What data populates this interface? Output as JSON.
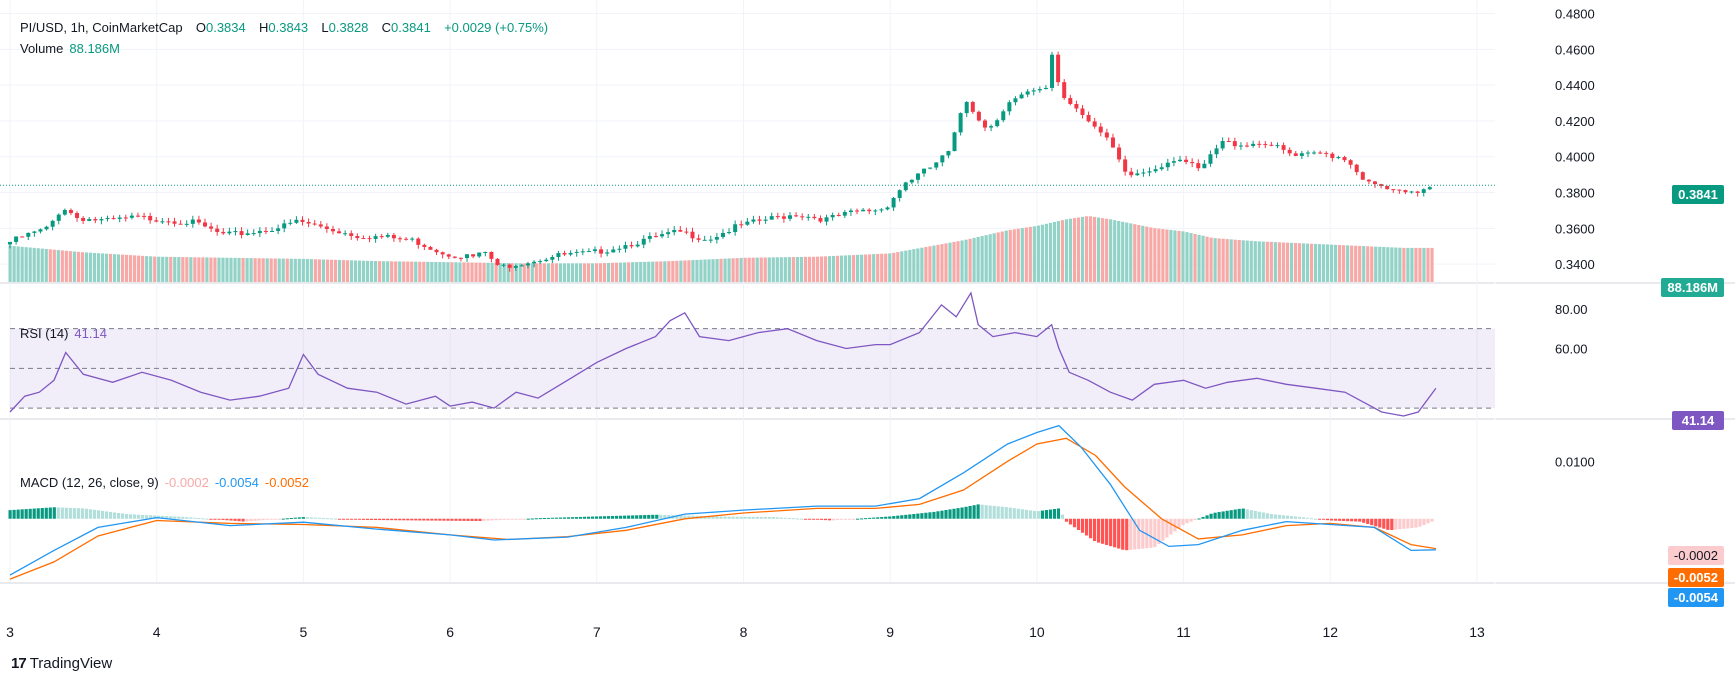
{
  "symbol": {
    "pair": "PI/USD",
    "interval": "1h",
    "source": "CoinMarketCap",
    "o_label": "O",
    "o_value": "0.3834",
    "h_label": "H",
    "h_value": "0.3843",
    "l_label": "L",
    "l_value": "0.3828",
    "c_label": "C",
    "c_value": "0.3841",
    "change": "+0.0029 (+0.75%)",
    "volume_label": "Volume",
    "volume_value": "88.186M"
  },
  "rsi": {
    "label": "RSI (14)",
    "value": "41.14"
  },
  "macd": {
    "label": "MACD (12, 26, close, 9)",
    "hist": "-0.0002",
    "macd": "-0.0054",
    "signal": "-0.0052"
  },
  "badges": {
    "price": "0.3841",
    "volume": "88.186M",
    "rsi": "41.14",
    "hist": "-0.0002",
    "signal": "-0.0052",
    "macd": "-0.0054"
  },
  "brand": {
    "logo": "17",
    "name": "TradingView"
  },
  "colors": {
    "up": "#089981",
    "down": "#f23645",
    "vol_up": "#92d2c7",
    "vol_down": "#f7a9a7",
    "rsi": "#7e57c2",
    "macd": "#2196f3",
    "signal": "#ff6d00",
    "grid": "#f0f3fa"
  },
  "chart_data": [
    {
      "type": "candlestick",
      "title": "PI/USD, 1h, CoinMarketCap",
      "x_ticks": [
        "3",
        "4",
        "5",
        "6",
        "7",
        "8",
        "9",
        "10",
        "11",
        "12",
        "13"
      ],
      "y_ticks": [
        "0.3400",
        "0.3600",
        "0.3800",
        "0.4000",
        "0.4200",
        "0.4400",
        "0.4600",
        "0.4800"
      ],
      "ylim": [
        0.33,
        0.482
      ],
      "last_price": 0.3841,
      "close_path": [
        [
          3.0,
          0.351
        ],
        [
          3.15,
          0.356
        ],
        [
          3.3,
          0.36
        ],
        [
          3.4,
          0.372
        ],
        [
          3.5,
          0.366
        ],
        [
          3.7,
          0.364
        ],
        [
          3.9,
          0.366
        ],
        [
          4.1,
          0.365
        ],
        [
          4.3,
          0.363
        ],
        [
          4.5,
          0.356
        ],
        [
          4.7,
          0.358
        ],
        [
          4.9,
          0.361
        ],
        [
          5.0,
          0.364
        ],
        [
          5.2,
          0.36
        ],
        [
          5.4,
          0.356
        ],
        [
          5.6,
          0.355
        ],
        [
          5.8,
          0.353
        ],
        [
          6.0,
          0.346
        ],
        [
          6.2,
          0.344
        ],
        [
          6.3,
          0.347
        ],
        [
          6.35,
          0.338
        ],
        [
          6.6,
          0.342
        ],
        [
          6.8,
          0.345
        ],
        [
          7.0,
          0.346
        ],
        [
          7.3,
          0.352
        ],
        [
          7.6,
          0.358
        ],
        [
          7.8,
          0.354
        ],
        [
          8.0,
          0.361
        ],
        [
          8.2,
          0.365
        ],
        [
          8.4,
          0.368
        ],
        [
          8.6,
          0.365
        ],
        [
          8.8,
          0.369
        ],
        [
          9.0,
          0.371
        ],
        [
          9.15,
          0.386
        ],
        [
          9.3,
          0.393
        ],
        [
          9.45,
          0.403
        ],
        [
          9.55,
          0.433
        ],
        [
          9.7,
          0.415
        ],
        [
          9.85,
          0.43
        ],
        [
          10.0,
          0.436
        ],
        [
          10.1,
          0.437
        ],
        [
          10.15,
          0.46
        ],
        [
          10.2,
          0.435
        ],
        [
          10.35,
          0.425
        ],
        [
          10.55,
          0.406
        ],
        [
          10.65,
          0.389
        ],
        [
          10.8,
          0.392
        ],
        [
          11.0,
          0.4
        ],
        [
          11.15,
          0.392
        ],
        [
          11.3,
          0.408
        ],
        [
          11.45,
          0.407
        ],
        [
          11.6,
          0.408
        ],
        [
          11.8,
          0.4
        ],
        [
          12.0,
          0.402
        ],
        [
          12.15,
          0.399
        ],
        [
          12.3,
          0.385
        ],
        [
          12.5,
          0.38
        ],
        [
          12.6,
          0.379
        ],
        [
          12.72,
          0.3841
        ]
      ]
    },
    {
      "type": "bar",
      "title": "Volume",
      "last_value": "88.186M",
      "note": "relative volume profile, scaled 0–1",
      "profile": [
        [
          3.0,
          0.33
        ],
        [
          3.5,
          0.27
        ],
        [
          4.0,
          0.23
        ],
        [
          4.5,
          0.22
        ],
        [
          5.0,
          0.21
        ],
        [
          5.5,
          0.19
        ],
        [
          6.0,
          0.18
        ],
        [
          6.5,
          0.17
        ],
        [
          7.0,
          0.17
        ],
        [
          7.5,
          0.19
        ],
        [
          8.0,
          0.22
        ],
        [
          8.5,
          0.23
        ],
        [
          9.0,
          0.26
        ],
        [
          9.5,
          0.38
        ],
        [
          9.8,
          0.47
        ],
        [
          10.0,
          0.51
        ],
        [
          10.2,
          0.57
        ],
        [
          10.35,
          0.6
        ],
        [
          10.5,
          0.57
        ],
        [
          10.8,
          0.49
        ],
        [
          11.0,
          0.46
        ],
        [
          11.2,
          0.4
        ],
        [
          11.5,
          0.37
        ],
        [
          12.0,
          0.34
        ],
        [
          12.5,
          0.31
        ],
        [
          12.72,
          0.31
        ]
      ]
    },
    {
      "type": "line",
      "title": "RSI (14)",
      "y_ticks": [
        "60.00",
        "80.00"
      ],
      "bands": [
        30,
        50,
        70
      ],
      "ylim": [
        25,
        92
      ],
      "last_value": 41.14,
      "x": [
        3.0,
        3.1,
        3.2,
        3.3,
        3.38,
        3.5,
        3.7,
        3.9,
        4.1,
        4.3,
        4.5,
        4.7,
        4.9,
        5.0,
        5.1,
        5.3,
        5.5,
        5.7,
        5.9,
        6.0,
        6.15,
        6.3,
        6.45,
        6.6,
        6.8,
        7.0,
        7.2,
        7.4,
        7.5,
        7.6,
        7.7,
        7.9,
        8.1,
        8.3,
        8.5,
        8.7,
        8.9,
        9.0,
        9.2,
        9.35,
        9.45,
        9.55,
        9.6,
        9.7,
        9.85,
        10.0,
        10.1,
        10.15,
        10.22,
        10.35,
        10.5,
        10.65,
        10.8,
        11.0,
        11.15,
        11.3,
        11.5,
        11.7,
        11.9,
        12.1,
        12.25,
        12.35,
        12.5,
        12.6,
        12.72
      ],
      "values": [
        28,
        36,
        38,
        44,
        58,
        47,
        43,
        48,
        44,
        38,
        34,
        36,
        40,
        57,
        47,
        40,
        38,
        32,
        36,
        31,
        33,
        30,
        38,
        35,
        44,
        53,
        60,
        66,
        74,
        78,
        66,
        64,
        68,
        70,
        64,
        60,
        62,
        62,
        68,
        82,
        76,
        88,
        72,
        66,
        68,
        66,
        72,
        60,
        48,
        44,
        38,
        34,
        42,
        44,
        40,
        43,
        45,
        42,
        40,
        38,
        32,
        28,
        26,
        28,
        40
      ]
    },
    {
      "type": "line",
      "title": "MACD (12, 26, close, 9)",
      "y_ticks": [
        "0.0100"
      ],
      "ylim": [
        -0.011,
        0.017
      ],
      "macd": {
        "name": "MACD",
        "last_value": -0.0054,
        "points": [
          [
            3.0,
            -0.0098
          ],
          [
            3.3,
            -0.0055
          ],
          [
            3.6,
            -0.0015
          ],
          [
            4.0,
            0.0002
          ],
          [
            4.5,
            -0.0012
          ],
          [
            5.0,
            -0.0006
          ],
          [
            5.5,
            -0.0018
          ],
          [
            6.0,
            -0.0028
          ],
          [
            6.3,
            -0.0037
          ],
          [
            6.8,
            -0.0032
          ],
          [
            7.2,
            -0.0015
          ],
          [
            7.6,
            0.0008
          ],
          [
            8.0,
            0.0015
          ],
          [
            8.5,
            0.0022
          ],
          [
            8.9,
            0.0022
          ],
          [
            9.2,
            0.0035
          ],
          [
            9.5,
            0.008
          ],
          [
            9.8,
            0.013
          ],
          [
            10.0,
            0.015
          ],
          [
            10.15,
            0.0162
          ],
          [
            10.3,
            0.0125
          ],
          [
            10.5,
            0.006
          ],
          [
            10.7,
            -0.002
          ],
          [
            10.9,
            -0.0048
          ],
          [
            11.1,
            -0.0045
          ],
          [
            11.4,
            -0.002
          ],
          [
            11.7,
            -0.0005
          ],
          [
            12.0,
            -0.001
          ],
          [
            12.3,
            -0.0015
          ],
          [
            12.55,
            -0.0055
          ],
          [
            12.72,
            -0.0054
          ]
        ]
      },
      "signal": {
        "name": "Signal",
        "last_value": -0.0052,
        "points": [
          [
            3.0,
            -0.0105
          ],
          [
            3.3,
            -0.0075
          ],
          [
            3.6,
            -0.003
          ],
          [
            4.0,
            -0.0003
          ],
          [
            4.5,
            -0.0008
          ],
          [
            5.0,
            -0.001
          ],
          [
            5.5,
            -0.0015
          ],
          [
            6.0,
            -0.0028
          ],
          [
            6.4,
            -0.0036
          ],
          [
            6.8,
            -0.0031
          ],
          [
            7.2,
            -0.002
          ],
          [
            7.6,
            0.0
          ],
          [
            8.0,
            0.001
          ],
          [
            8.5,
            0.0018
          ],
          [
            8.9,
            0.0018
          ],
          [
            9.2,
            0.0025
          ],
          [
            9.5,
            0.005
          ],
          [
            9.8,
            0.01
          ],
          [
            10.0,
            0.013
          ],
          [
            10.2,
            0.014
          ],
          [
            10.4,
            0.011
          ],
          [
            10.6,
            0.0055
          ],
          [
            10.85,
            0.0
          ],
          [
            11.1,
            -0.0035
          ],
          [
            11.4,
            -0.0028
          ],
          [
            11.7,
            -0.0012
          ],
          [
            12.0,
            -0.0008
          ],
          [
            12.3,
            -0.0015
          ],
          [
            12.55,
            -0.0045
          ],
          [
            12.72,
            -0.0052
          ]
        ]
      },
      "histogram": {
        "name": "Histogram",
        "last_value": -0.0002,
        "points": [
          [
            3.0,
            0.0015
          ],
          [
            3.3,
            0.002
          ],
          [
            3.5,
            0.0018
          ],
          [
            3.8,
            0.0008
          ],
          [
            4.2,
            0.0003
          ],
          [
            4.6,
            -0.0005
          ],
          [
            5.0,
            0.0003
          ],
          [
            5.4,
            -0.0002
          ],
          [
            5.8,
            -0.0003
          ],
          [
            6.2,
            -0.0004
          ],
          [
            6.6,
            0.0001
          ],
          [
            7.0,
            0.0004
          ],
          [
            7.4,
            0.0007
          ],
          [
            7.8,
            0.0004
          ],
          [
            8.2,
            0.0003
          ],
          [
            8.6,
            -0.0003
          ],
          [
            9.0,
            0.0004
          ],
          [
            9.3,
            0.0012
          ],
          [
            9.5,
            0.002
          ],
          [
            9.6,
            0.0025
          ],
          [
            9.8,
            0.002
          ],
          [
            10.0,
            0.0013
          ],
          [
            10.15,
            0.0018
          ],
          [
            10.2,
            -0.0005
          ],
          [
            10.4,
            -0.004
          ],
          [
            10.6,
            -0.0055
          ],
          [
            10.8,
            -0.005
          ],
          [
            11.0,
            -0.001
          ],
          [
            11.2,
            0.001
          ],
          [
            11.4,
            0.0018
          ],
          [
            11.6,
            0.0008
          ],
          [
            11.8,
            0.0003
          ],
          [
            12.0,
            -0.0003
          ],
          [
            12.2,
            -0.0005
          ],
          [
            12.4,
            -0.002
          ],
          [
            12.6,
            -0.0015
          ],
          [
            12.72,
            -0.0002
          ]
        ]
      }
    }
  ]
}
